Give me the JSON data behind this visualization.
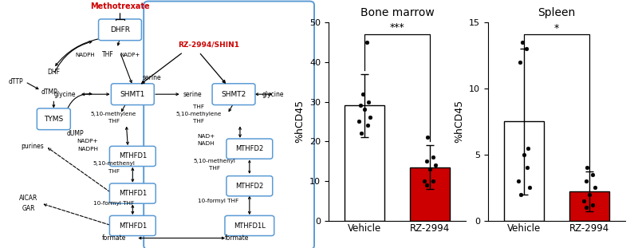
{
  "bm_vehicle_bar": 29.0,
  "bm_vehicle_err": 8.0,
  "bm_vehicle_dots": [
    22,
    24,
    25,
    26,
    28,
    29,
    30,
    32,
    45
  ],
  "bm_rz_bar": 13.5,
  "bm_rz_err": 5.5,
  "bm_rz_dots": [
    9,
    10,
    10,
    13,
    14,
    15,
    16,
    21
  ],
  "sp_vehicle_bar": 7.5,
  "sp_vehicle_err": 5.5,
  "sp_vehicle_dots": [
    2.0,
    2.5,
    3.0,
    4.0,
    5.0,
    5.5,
    12.0,
    13.0,
    13.5
  ],
  "sp_rz_bar": 2.2,
  "sp_rz_err": 1.5,
  "sp_rz_dots": [
    1.0,
    1.2,
    1.5,
    2.0,
    2.5,
    3.0,
    3.5,
    4.0
  ],
  "bm_ylim": [
    0,
    50
  ],
  "bm_yticks": [
    0,
    10,
    20,
    30,
    40,
    50
  ],
  "sp_ylim": [
    0,
    15
  ],
  "sp_yticks": [
    0,
    5,
    10,
    15
  ],
  "bm_title": "Bone marrow",
  "sp_title": "Spleen",
  "ylabel": "%hCD45",
  "xlabel_labels": [
    "Vehicle",
    "RZ-2994"
  ],
  "bar_colors": [
    "white",
    "#cc0000"
  ],
  "bar_edgecolor": "black",
  "dot_color": "black",
  "sig_bm": "***",
  "sig_sp": "*",
  "background": "white",
  "box_color": "#5b9bd5",
  "red_color": "#cc0000"
}
